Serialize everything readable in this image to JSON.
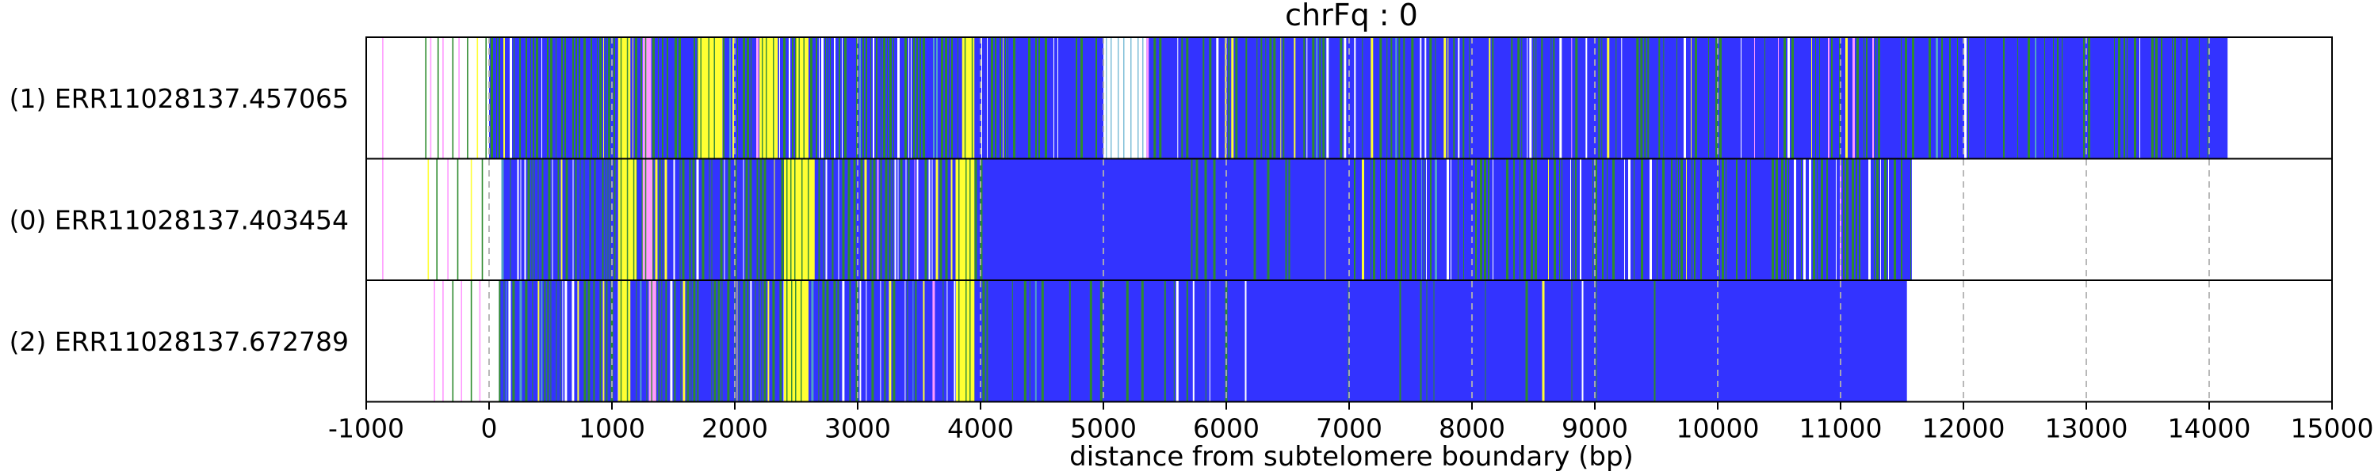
{
  "chart_data": {
    "type": "heatmap",
    "title": "chrFq : 0",
    "xlabel": "distance from subtelomere boundary (bp)",
    "xlim": [
      -1000,
      15000
    ],
    "xticks": [
      -1000,
      0,
      1000,
      2000,
      3000,
      4000,
      5000,
      6000,
      7000,
      8000,
      9000,
      10000,
      11000,
      12000,
      13000,
      14000,
      15000
    ],
    "xtick_labels": [
      "-1000",
      "0",
      "1000",
      "2000",
      "3000",
      "4000",
      "5000",
      "6000",
      "7000",
      "8000",
      "9000",
      "10000",
      "11000",
      "12000",
      "13000",
      "14000",
      "15000"
    ],
    "grid": "vertical dashed at x ticks",
    "colors": {
      "blue": "#3333ff",
      "green": "#2e8b2e",
      "yellow": "#ffff33",
      "pink": "#ff99ff",
      "white": "#ffffff"
    },
    "rows": [
      {
        "label": "(1) ERR11028137.457065",
        "read_start": -1000,
        "read_end": 14150,
        "colored_start": 0,
        "base_color": "blue",
        "sparse_marks": [
          {
            "x": -870,
            "color": "pink"
          },
          {
            "x": -520,
            "color": "green"
          },
          {
            "x": -480,
            "color": "pink"
          },
          {
            "x": -420,
            "color": "green"
          },
          {
            "x": -380,
            "color": "pink"
          },
          {
            "x": -300,
            "color": "green"
          },
          {
            "x": -250,
            "color": "pink"
          },
          {
            "x": -180,
            "color": "green"
          },
          {
            "x": -100,
            "color": "yellow"
          },
          {
            "x": -30,
            "color": "green"
          }
        ],
        "segments": [
          {
            "x0": 1050,
            "x1": 1150,
            "color": "yellow"
          },
          {
            "x0": 1250,
            "x1": 1320,
            "color": "pink"
          },
          {
            "x0": 1700,
            "x1": 1900,
            "color": "yellow"
          },
          {
            "x0": 2200,
            "x1": 2350,
            "color": "yellow"
          },
          {
            "x0": 2500,
            "x1": 2600,
            "color": "yellow"
          },
          {
            "x0": 3850,
            "x1": 3950,
            "color": "yellow"
          },
          {
            "x0": 5000,
            "x1": 5350,
            "color": "white"
          }
        ],
        "stripe_regions": [
          {
            "x0": 0,
            "x1": 4200,
            "density": 0.55,
            "color": "green"
          },
          {
            "x0": 4200,
            "x1": 5000,
            "density": 0.25,
            "color": "green"
          },
          {
            "x0": 5350,
            "x1": 9600,
            "density": 0.28,
            "color": "green"
          },
          {
            "x0": 9600,
            "x1": 14100,
            "density": 0.22,
            "color": "green"
          }
        ]
      },
      {
        "label": "(0) ERR11028137.403454",
        "read_start": -1000,
        "read_end": 11580,
        "colored_start": 100,
        "base_color": "blue",
        "sparse_marks": [
          {
            "x": -870,
            "color": "pink"
          },
          {
            "x": -500,
            "color": "yellow"
          },
          {
            "x": -430,
            "color": "green"
          },
          {
            "x": -340,
            "color": "pink"
          },
          {
            "x": -260,
            "color": "green"
          },
          {
            "x": -150,
            "color": "yellow"
          },
          {
            "x": -60,
            "color": "green"
          }
        ],
        "segments": [
          {
            "x0": 1050,
            "x1": 1200,
            "color": "yellow"
          },
          {
            "x0": 1250,
            "x1": 1330,
            "color": "pink"
          },
          {
            "x0": 2400,
            "x1": 2650,
            "color": "yellow"
          },
          {
            "x0": 3800,
            "x1": 3950,
            "color": "yellow"
          }
        ],
        "stripe_regions": [
          {
            "x0": 100,
            "x1": 4000,
            "density": 0.5,
            "color": "green"
          },
          {
            "x0": 5700,
            "x1": 7000,
            "density": 0.12,
            "color": "green"
          },
          {
            "x0": 7000,
            "x1": 11580,
            "density": 0.4,
            "color": "green"
          }
        ]
      },
      {
        "label": "(2) ERR11028137.672789",
        "read_start": -1000,
        "read_end": 11540,
        "colored_start": 80,
        "base_color": "blue",
        "sparse_marks": [
          {
            "x": -450,
            "color": "pink"
          },
          {
            "x": -380,
            "color": "pink"
          },
          {
            "x": -300,
            "color": "green"
          },
          {
            "x": -230,
            "color": "pink"
          },
          {
            "x": -150,
            "color": "green"
          },
          {
            "x": -80,
            "color": "pink"
          }
        ],
        "segments": [
          {
            "x0": 1050,
            "x1": 1150,
            "color": "yellow"
          },
          {
            "x0": 1300,
            "x1": 1360,
            "color": "pink"
          },
          {
            "x0": 2400,
            "x1": 2600,
            "color": "yellow"
          },
          {
            "x0": 3800,
            "x1": 3950,
            "color": "yellow"
          }
        ],
        "stripe_regions": [
          {
            "x0": 80,
            "x1": 4050,
            "density": 0.5,
            "color": "green"
          },
          {
            "x0": 4050,
            "x1": 5900,
            "density": 0.12,
            "color": "green"
          },
          {
            "x0": 5900,
            "x1": 9500,
            "density": 0.06,
            "color": "green"
          }
        ]
      }
    ]
  }
}
